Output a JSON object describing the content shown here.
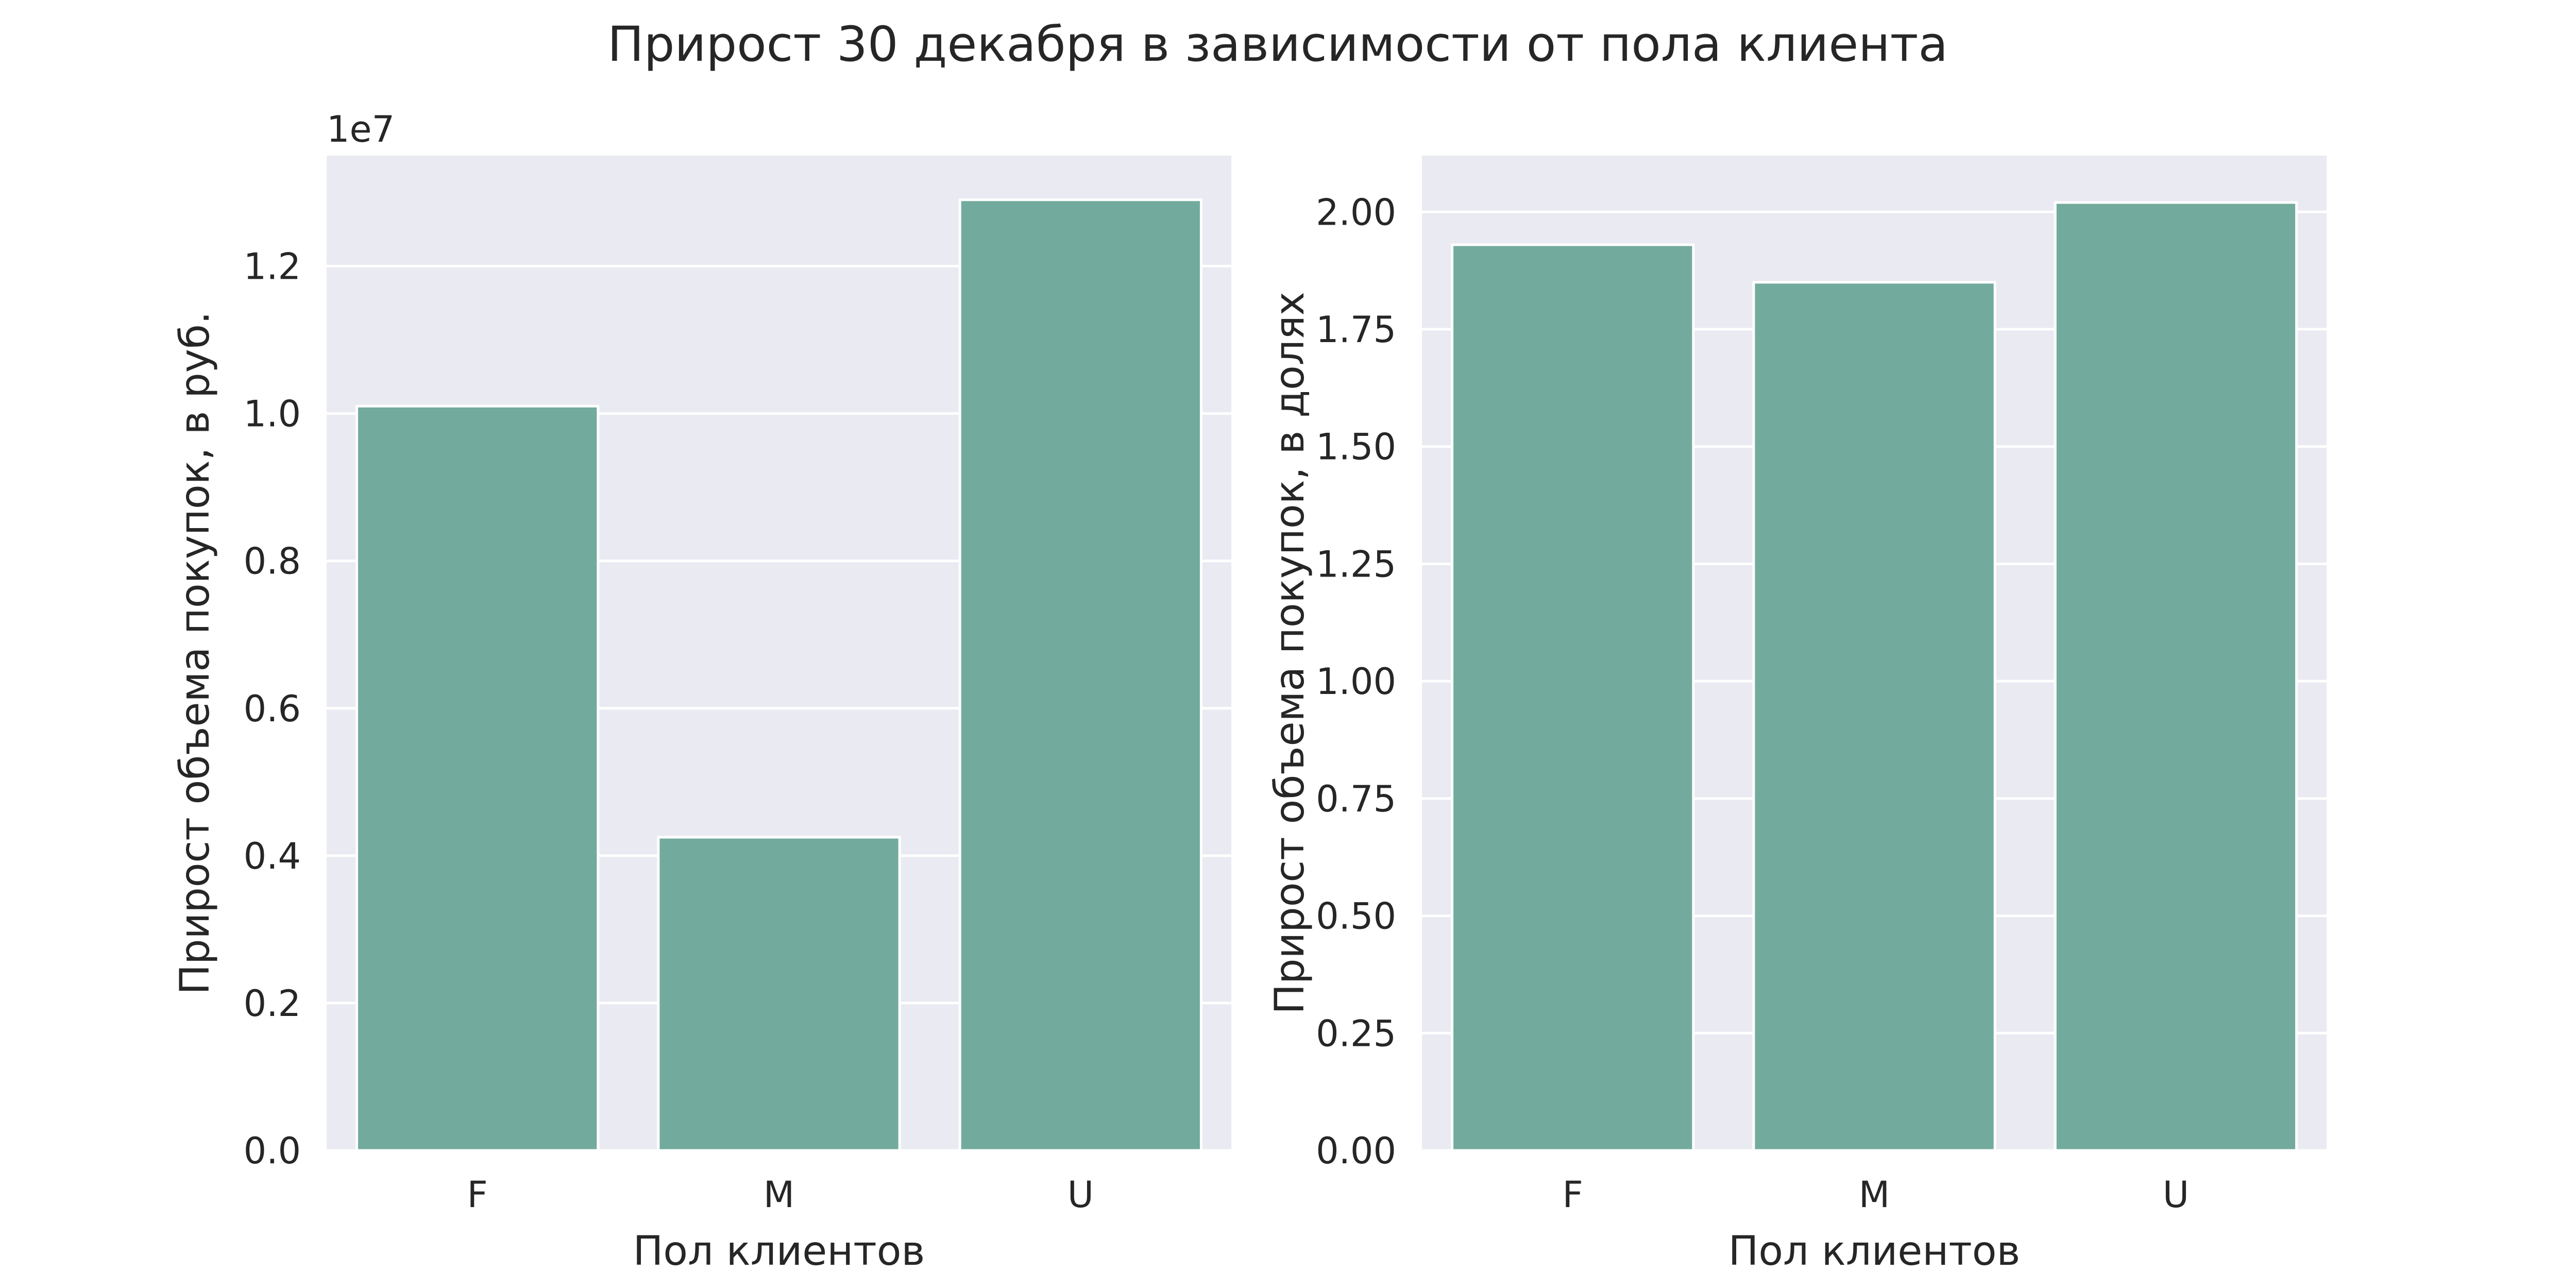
{
  "figure": {
    "title": "Прирост 30 декабря в зависимости от пола клиента"
  },
  "colors": {
    "bar": "#72ab9d",
    "plot_background": "#eaeaf2",
    "grid": "#ffffff",
    "text": "#262626"
  },
  "chart_data": [
    {
      "type": "bar",
      "categories": [
        "F",
        "M",
        "U"
      ],
      "values": [
        10100000,
        4250000,
        12900000
      ],
      "xlabel": "Пол клиентов",
      "ylabel": "Прирост объема покупок, в руб.",
      "ylim": [
        0,
        13500000
      ],
      "yticks": [
        0,
        2000000,
        4000000,
        6000000,
        8000000,
        10000000,
        12000000
      ],
      "ytick_labels": [
        "0.0",
        "0.2",
        "0.4",
        "0.6",
        "0.8",
        "1.0",
        "1.2"
      ],
      "offset_label": "1e7",
      "grid": true,
      "legend": "none"
    },
    {
      "type": "bar",
      "categories": [
        "F",
        "M",
        "U"
      ],
      "values": [
        1.93,
        1.85,
        2.02
      ],
      "xlabel": "Пол клиентов",
      "ylabel": "Прирост объема покупок, в долях",
      "ylim": [
        0,
        2.12
      ],
      "yticks": [
        0,
        0.25,
        0.5,
        0.75,
        1.0,
        1.25,
        1.5,
        1.75,
        2.0
      ],
      "ytick_labels": [
        "0.00",
        "0.25",
        "0.50",
        "0.75",
        "1.00",
        "1.25",
        "1.50",
        "1.75",
        "2.00"
      ],
      "offset_label": "",
      "grid": true,
      "legend": "none"
    }
  ]
}
